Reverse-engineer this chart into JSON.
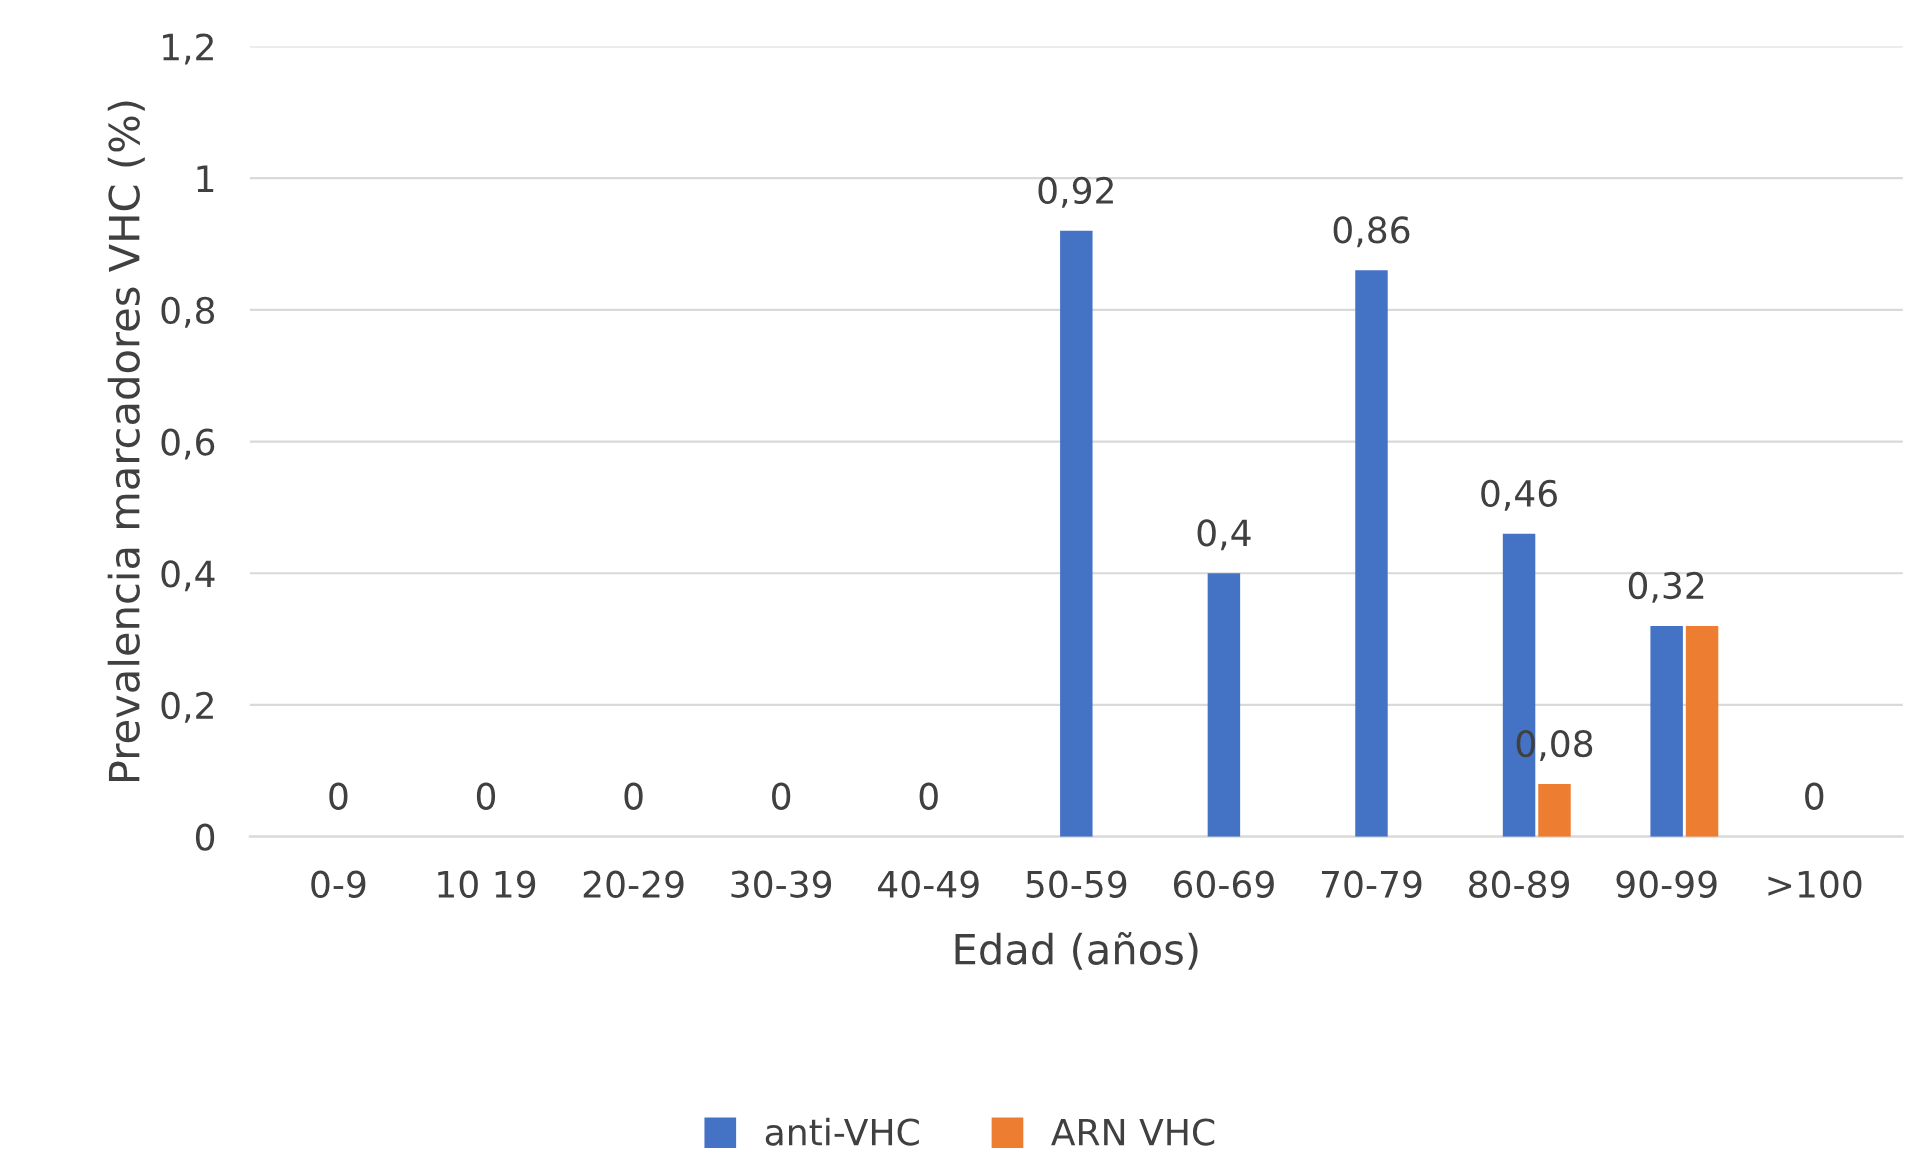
{
  "chart_data": {
    "type": "bar",
    "xlabel": "Edad (años)",
    "ylabel": "Prevalencia marcadores VHC (%)",
    "categories": [
      "0-9",
      "10 19",
      "20-29",
      "30-39",
      "40-49",
      "50-59",
      "60-69",
      "70-79",
      "80-89",
      "90-99",
      ">100"
    ],
    "series": [
      {
        "name": "anti-VHC",
        "color": "#4472c4",
        "values": [
          0,
          0,
          0,
          0,
          0,
          0.92,
          0.4,
          0.86,
          0.46,
          0.32,
          0
        ],
        "value_labels": [
          "0",
          "0",
          "0",
          "0",
          "0",
          "0,92",
          "0,4",
          "0,86",
          "0,46",
          "0,32",
          "0"
        ]
      },
      {
        "name": "ARN VHC",
        "color": "#ed7d31",
        "values": [
          0,
          0,
          0,
          0,
          0,
          0,
          0,
          0,
          0.08,
          0.32,
          0
        ],
        "value_labels": [
          null,
          null,
          null,
          null,
          null,
          null,
          null,
          null,
          "0,08",
          null,
          null
        ]
      }
    ],
    "ylim": [
      0,
      1.2
    ],
    "yticks": [
      {
        "value": 0,
        "label": "0"
      },
      {
        "value": 0.2,
        "label": "0,2"
      },
      {
        "value": 0.4,
        "label": "0,4"
      },
      {
        "value": 0.6,
        "label": "0,6"
      },
      {
        "value": 0.8,
        "label": "0,8"
      },
      {
        "value": 1,
        "label": "1"
      },
      {
        "value": 1.2,
        "label": "1,2"
      }
    ],
    "grid": "y",
    "legend": "bottom"
  }
}
